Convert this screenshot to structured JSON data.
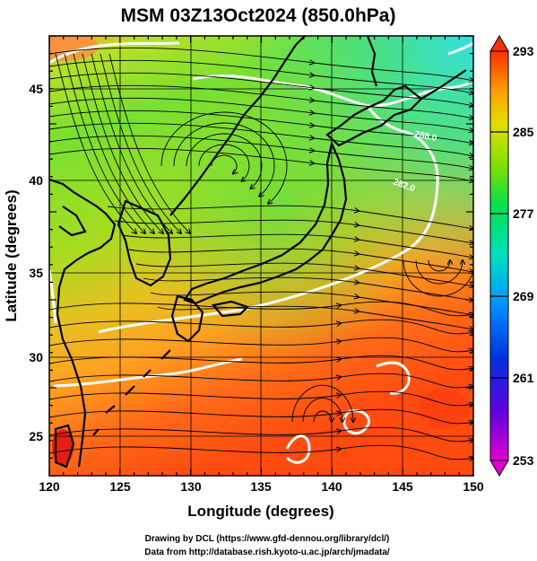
{
  "title": "MSM 03Z13Oct2024 (850.0hPa)",
  "x_axis": {
    "label": "Longitude (degrees)",
    "ticks": [
      "120",
      "125",
      "130",
      "135",
      "140",
      "145",
      "150"
    ],
    "range": [
      120,
      150
    ]
  },
  "y_axis": {
    "label": "Latitude  (degrees)",
    "ticks": [
      "25",
      "30",
      "35",
      "40",
      "45"
    ],
    "range": [
      22.5,
      47.5
    ]
  },
  "colorbar": {
    "ticks": [
      "293",
      "285",
      "277",
      "269",
      "261",
      "253"
    ],
    "range": [
      253,
      293
    ],
    "colors": [
      "#d000d0",
      "#0010c0",
      "#00b8ff",
      "#00e070",
      "#b0e000",
      "#ffb000",
      "#ff2000"
    ]
  },
  "contour_labels": [
    "288.0",
    "282.0",
    "282.0"
  ],
  "credits": {
    "line1": "Drawing by DCL (https://www.gfd-dennou.org/library/dcl/)",
    "line2": "Data from http://database.rish.kyoto-u.ac.jp/arch/jmadata/"
  }
}
